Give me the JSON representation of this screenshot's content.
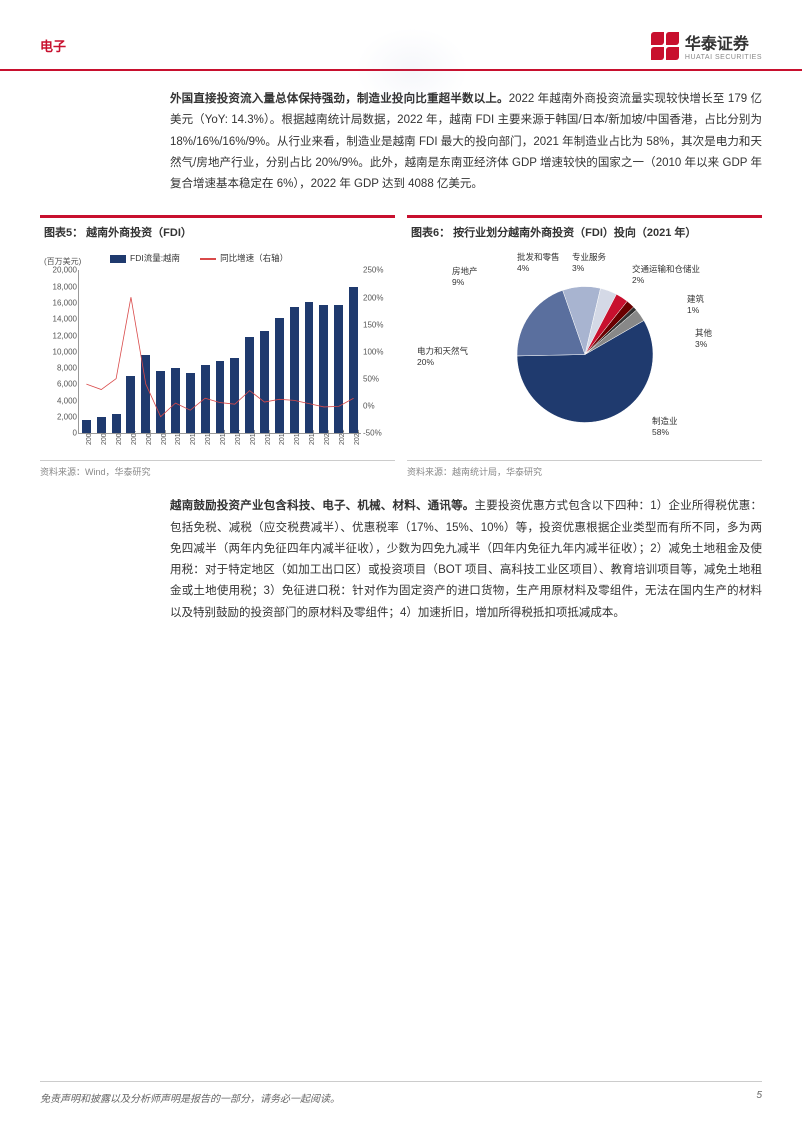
{
  "header": {
    "section": "电子",
    "company_cn": "华泰证券",
    "company_en": "HUATAI SECURITIES"
  },
  "paragraph1": {
    "bold": "外国直接投资流入量总体保持强劲，制造业投向比重超半数以上。",
    "rest": "2022 年越南外商投资流量实现较快增长至 179 亿美元（YoY: 14.3%）。根据越南统计局数据，2022 年，越南 FDI 主要来源于韩国/日本/新加坡/中国香港，占比分别为 18%/16%/16%/9%。从行业来看，制造业是越南 FDI 最大的投向部门，2021 年制造业占比为 58%，其次是电力和天然气/房地产行业，分别占比 20%/9%。此外，越南是东南亚经济体 GDP 增速较快的国家之一（2010 年以来 GDP 年复合增速基本稳定在 6%），2022 年 GDP 达到 4088 亿美元。"
  },
  "chart5": {
    "title": "图表5：  越南外商投资（FDI）",
    "source": "资料来源：Wind，华泰研究",
    "y_left_unit": "(百万美元)",
    "legend_bar": "FDI流量:越南",
    "legend_line": "同比增速（右轴）",
    "y_left_ticks": [
      "0",
      "2,000",
      "4,000",
      "6,000",
      "8,000",
      "10,000",
      "12,000",
      "14,000",
      "16,000",
      "18,000",
      "20,000"
    ],
    "y_left_max": 20000,
    "y_right_ticks": [
      "-50%",
      "0%",
      "50%",
      "100%",
      "150%",
      "200%",
      "250%"
    ],
    "y_right_min": -50,
    "y_right_max": 250,
    "years": [
      "2004",
      "2005",
      "2006",
      "2007",
      "2008",
      "2009",
      "2010",
      "2011",
      "2012",
      "2013",
      "2014",
      "2015",
      "2016",
      "2017",
      "2018",
      "2019",
      "2020",
      "2021",
      "2022"
    ],
    "bar_values": [
      1600,
      2000,
      2400,
      7000,
      9600,
      7600,
      8000,
      7400,
      8400,
      8900,
      9200,
      11800,
      12600,
      14100,
      15500,
      16100,
      15800,
      15700,
      17900
    ],
    "line_values": [
      40,
      30,
      50,
      200,
      40,
      -20,
      5,
      -8,
      14,
      6,
      3,
      28,
      7,
      12,
      10,
      4,
      -2,
      -1,
      14
    ],
    "bar_color": "#1f3a6e",
    "line_color": "#d94a4a"
  },
  "chart6": {
    "title": "图表6：  按行业划分越南外商投资（FDI）投向（2021 年）",
    "source": "资料来源：越南统计局，华泰研究",
    "slices": [
      {
        "label": "制造业",
        "pct": 58,
        "color": "#1f3a6e"
      },
      {
        "label": "电力和天然气",
        "pct": 20,
        "color": "#5a6f9e"
      },
      {
        "label": "房地产",
        "pct": 9,
        "color": "#a8b4d0"
      },
      {
        "label": "批发和零售",
        "pct": 4,
        "color": "#d4d9e6"
      },
      {
        "label": "专业服务",
        "pct": 3,
        "color": "#c8102e"
      },
      {
        "label": "交通运输和仓储业",
        "pct": 2,
        "color": "#6a0000"
      },
      {
        "label": "建筑",
        "pct": 1,
        "color": "#333333"
      },
      {
        "label": "其他",
        "pct": 3,
        "color": "#888888"
      }
    ]
  },
  "paragraph2": {
    "bold": "越南鼓励投资产业包含科技、电子、机械、材料、通讯等。",
    "rest": "主要投资优惠方式包含以下四种：1）企业所得税优惠：包括免税、减税（应交税费减半）、优惠税率（17%、15%、10%）等，投资优惠根据企业类型而有所不同，多为两免四减半（两年内免征四年内减半征收），少数为四免九减半（四年内免征九年内减半征收）；2）减免土地租金及使用税：对于特定地区（如加工出口区）或投资项目（BOT 项目、高科技工业区项目）、教育培训项目等，减免土地租金或土地使用税；3）免征进口税：针对作为固定资产的进口货物，生产用原材料及零组件，无法在国内生产的材料以及特别鼓励的投资部门的原材料及零组件；4）加速折旧，增加所得税抵扣项抵减成本。"
  },
  "footer": {
    "disclaimer": "免责声明和披露以及分析师声明是报告的一部分，请务必一起阅读。",
    "page": "5"
  }
}
